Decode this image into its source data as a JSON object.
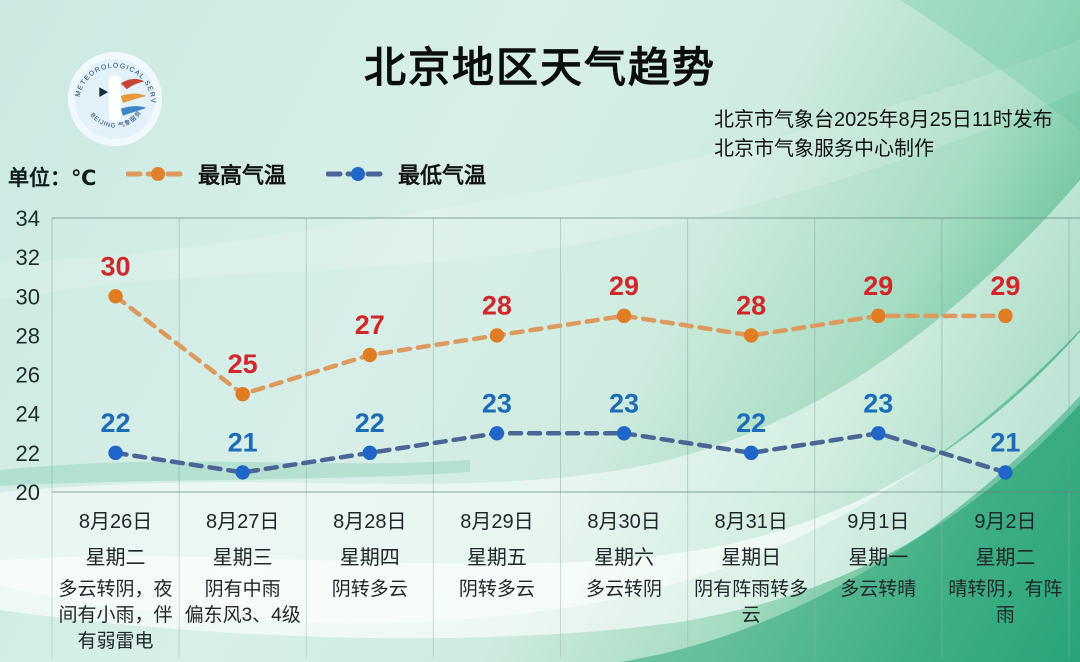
{
  "header": {
    "title": "北京地区天气趋势",
    "issued_line1": "北京市气象台2025年8月25日11时发布",
    "issued_line2": "北京市气象服务中心制作",
    "logo": {
      "top_text": "METEOROLOGICAL SERVICE",
      "bottom_text": "BEIJING 气象服务"
    }
  },
  "unit_label": "单位：℃",
  "legend": {
    "high": "最高气温",
    "low": "最低气温"
  },
  "colors": {
    "high_line": "#dd9a5e",
    "high_point": "#e07c22",
    "high_label": "#d1272b",
    "low_line": "#4a6596",
    "low_point": "#2066c8",
    "low_label": "#1c6cb8",
    "grid": "rgba(110,150,142,0.38)",
    "border": "rgba(95,130,122,0.55)"
  },
  "chart_data": {
    "type": "line",
    "title": "北京地区天气趋势",
    "x": [
      "8月26日",
      "8月27日",
      "8月28日",
      "8月29日",
      "8月30日",
      "8月31日",
      "9月1日",
      "9月2日"
    ],
    "weekdays": [
      "星期二",
      "星期三",
      "星期四",
      "星期五",
      "星期六",
      "星期日",
      "星期一",
      "星期二"
    ],
    "weather": [
      "多云转阴，夜间有小雨，伴有弱雷电",
      "阴有中雨\n偏东风3、4级",
      "阴转多云",
      "阴转多云",
      "多云转阴",
      "阴有阵雨转多云",
      "多云转晴",
      "晴转阴，有阵雨"
    ],
    "series": [
      {
        "name": "最高气温",
        "values": [
          30,
          25,
          27,
          28,
          29,
          28,
          29,
          29
        ]
      },
      {
        "name": "最低气温",
        "values": [
          22,
          21,
          22,
          23,
          23,
          22,
          23,
          21
        ]
      }
    ],
    "ylim": [
      20,
      34
    ],
    "yticks": [
      34,
      32,
      30,
      28,
      26,
      24,
      22,
      20
    ],
    "unit": "℃",
    "grid": "vertical",
    "legend_position": "top-left"
  }
}
